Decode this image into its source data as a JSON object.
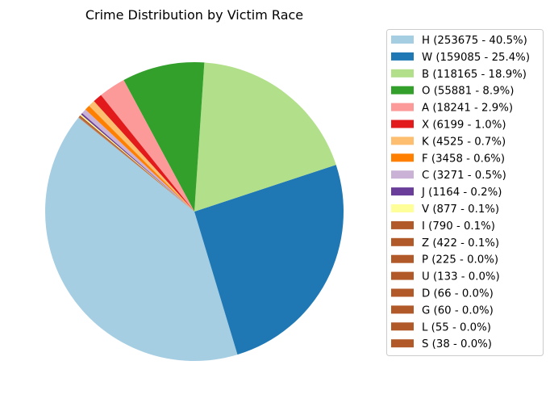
{
  "chart_data": {
    "type": "pie",
    "title": "Crime Distribution by Victim Race",
    "legend_position": "right",
    "start_angle_deg": 141,
    "direction": "counterclockwise",
    "slices": [
      {
        "label": "H (253675 - 40.5%)",
        "value": 253675,
        "color": "#a6cee3"
      },
      {
        "label": "W (159085 - 25.4%)",
        "value": 159085,
        "color": "#1f78b4"
      },
      {
        "label": "B (118165 - 18.9%)",
        "value": 118165,
        "color": "#b2df8a"
      },
      {
        "label": "O (55881 - 8.9%)",
        "value": 55881,
        "color": "#33a02c"
      },
      {
        "label": "A (18241 - 2.9%)",
        "value": 18241,
        "color": "#fb9a99"
      },
      {
        "label": "X (6199 - 1.0%)",
        "value": 6199,
        "color": "#e31a1c"
      },
      {
        "label": "K (4525 - 0.7%)",
        "value": 4525,
        "color": "#fdbf6f"
      },
      {
        "label": "F (3458 - 0.6%)",
        "value": 3458,
        "color": "#ff7f00"
      },
      {
        "label": "C (3271 - 0.5%)",
        "value": 3271,
        "color": "#cab2d6"
      },
      {
        "label": "J (1164 - 0.2%)",
        "value": 1164,
        "color": "#6a3d9a"
      },
      {
        "label": "V (877 - 0.1%)",
        "value": 877,
        "color": "#ffff99"
      },
      {
        "label": "I (790 - 0.1%)",
        "value": 790,
        "color": "#b15928"
      },
      {
        "label": "Z (422 - 0.1%)",
        "value": 422,
        "color": "#b15928"
      },
      {
        "label": "P (225 - 0.0%)",
        "value": 225,
        "color": "#b15928"
      },
      {
        "label": "U (133 - 0.0%)",
        "value": 133,
        "color": "#b15928"
      },
      {
        "label": "D (66 - 0.0%)",
        "value": 66,
        "color": "#b15928"
      },
      {
        "label": "G (60 - 0.0%)",
        "value": 60,
        "color": "#b15928"
      },
      {
        "label": "L (55 - 0.0%)",
        "value": 55,
        "color": "#b15928"
      },
      {
        "label": "S (38 - 0.0%)",
        "value": 38,
        "color": "#b15928"
      }
    ]
  }
}
